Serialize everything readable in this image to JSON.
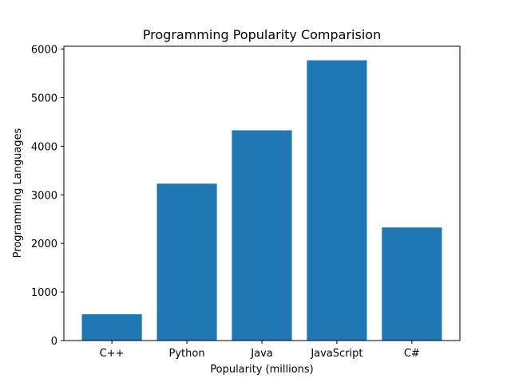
{
  "chart_data": {
    "type": "bar",
    "title": "Programming Popularity Comparision",
    "xlabel": "Popularity (millions)",
    "ylabel": "Programming Languages",
    "categories": [
      "C++",
      "Python",
      "Java",
      "JavaScript",
      "C#"
    ],
    "values": [
      541,
      3230,
      4328,
      5770,
      2328
    ],
    "ylim": [
      0,
      6059
    ],
    "yticks": [
      0,
      1000,
      2000,
      3000,
      4000,
      5000,
      6000
    ],
    "grid": false,
    "bar_color": "#1f77b4"
  }
}
